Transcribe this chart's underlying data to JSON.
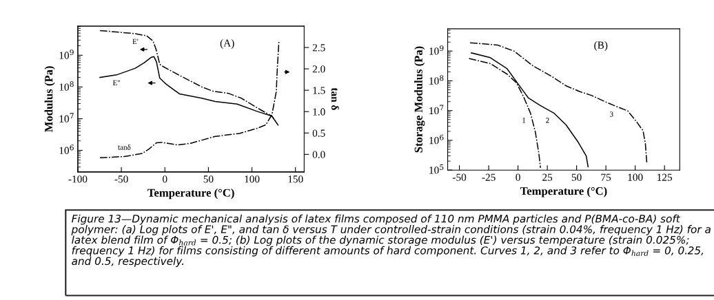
{
  "chart_data": [
    {
      "type": "line",
      "title": "(A)",
      "xlabel": "Temperature (°C)",
      "ylabel": "Modulus (Pa)",
      "y2label": "tan δ",
      "log": "y",
      "grid": false,
      "legend": false,
      "marker": "none",
      "xlim": [
        -100,
        160
      ],
      "xticks": [
        -100,
        -50,
        0,
        50,
        100,
        150
      ],
      "ylim": [
        210000,
        8300000000
      ],
      "yticks": [
        {
          "value": 1000000,
          "label": "10$^{6}$"
        },
        {
          "value": 10000000,
          "label": "10$^{7}$"
        },
        {
          "value": 100000000,
          "label": "10$^{8}$"
        },
        {
          "value": 1000000000,
          "label": "10$^{9}$"
        }
      ],
      "y2lim": [
        -0.41,
        3.0
      ],
      "y2ticks": [
        {
          "value": 0,
          "label": "0.0"
        },
        {
          "value": 0.5,
          "label": "0.5"
        },
        {
          "value": 1,
          "label": "1.0"
        },
        {
          "value": 1.5,
          "label": "1.5"
        },
        {
          "value": 2,
          "label": "2.0"
        },
        {
          "value": 2.5,
          "label": "2.5"
        }
      ],
      "series": [
        {
          "name": "E'",
          "color": "#000000",
          "line_style": "dashed",
          "x": [
            -74.6,
            -33.9,
            -21,
            -13.5,
            -9.7,
            -5.9,
            -2,
            17,
            42.5,
            55,
            73,
            88,
            106,
            123,
            129
          ],
          "values": [
            6000000000.0,
            4800000000.0,
            4100000000.0,
            2800000000.0,
            1400000000.0,
            520000000.0,
            440000000.0,
            230000000.0,
            100000000.0,
            74000000.0,
            63000000.0,
            44000000.0,
            22000000.0,
            12000000.0,
            6900000.0
          ]
        },
        {
          "name": "E\"",
          "color": "#000000",
          "line_style": "solid",
          "x": [
            -74.6,
            -55.5,
            -33.9,
            -23.7,
            -16,
            -12.7,
            -9.7,
            -5.9,
            1.8,
            17,
            42.5,
            57.8,
            83,
            106,
            123,
            130
          ],
          "values": [
            200000000.0,
            240000000.0,
            390000000.0,
            580000000.0,
            850000000.0,
            910000000.0,
            630000000.0,
            190000000.0,
            120000000.0,
            60000000.0,
            44000000.0,
            35000000.0,
            29000000.0,
            17000000.0,
            12000000.0,
            6300000.0
          ]
        },
        {
          "name": "tanδ",
          "color": "#000000",
          "line_style": "dashed",
          "axis": "y2",
          "x": [
            -74.6,
            -46.6,
            -26,
            -18.6,
            -9.7,
            -3.3,
            14.5,
            29.8,
            57.8,
            85.8,
            106,
            116,
            123,
            128,
            129,
            131
          ],
          "values": [
            -0.08,
            -0.05,
            0.02,
            0.12,
            0.27,
            0.28,
            0.22,
            0.26,
            0.42,
            0.49,
            0.61,
            0.69,
            0.93,
            1.47,
            1.95,
            2.65
          ]
        }
      ],
      "annotations": [
        "Figure 13—Dynamic mechanical analysis of latex films composed of 110 nm PMMA particles and P(BMA-co-BA) soft polymer: (a) Log plots of E', E\", and tan δ versus T under controlled-strain conditions (strain 0.04%, frequency 1 Hz) for a latex blend film of Φ$_{hard}$ = 0.5; (b) Log plots of the dynamic storage modulus (E') versus temperature (strain 0.025%; frequency 1 Hz) for films consisting of different amounts of hard component. Curves 1, 2, and 3 refer to Φ$_{hard}$ = 0, 0.25, and 0.5, respectively."
      ]
    },
    {
      "type": "line",
      "title": "(B)",
      "xlabel": "Temperature (°C)",
      "ylabel": "Storage Modulus (Pa)",
      "log": "y",
      "grid": false,
      "legend": false,
      "marker": "none",
      "xlim": [
        -60,
        138
      ],
      "xticks": [
        -50,
        -25,
        0,
        25,
        50,
        75,
        100,
        125
      ],
      "ylim": [
        100000,
        5600000000
      ],
      "yticks": [
        {
          "value": 100000,
          "label": "10$^{5}$"
        },
        {
          "value": 1000000,
          "label": "10$^{6}$"
        },
        {
          "value": 10000000,
          "label": "10$^{7}$"
        },
        {
          "value": 100000000,
          "label": "10$^{8}$"
        },
        {
          "value": 1000000000,
          "label": "10$^{9}$"
        }
      ],
      "series": [
        {
          "name": "1",
          "color": "#000000",
          "line_style": "dashed",
          "x": [
            -41.8,
            -23.6,
            -9.5,
            -1.4,
            4.6,
            10.7,
            14.8,
            17.8,
            19.2
          ],
          "values": [
            560000000.0,
            380000000.0,
            170000000.0,
            87000000.0,
            30000000.0,
            8100000.0,
            1900000.0,
            360000.0,
            120000.0
          ]
        },
        {
          "name": "2",
          "color": "#000000",
          "line_style": "solid",
          "x": [
            -39.8,
            -23.6,
            -9.5,
            0.6,
            8.7,
            18.8,
            30.9,
            41,
            51,
            58.2,
            59.8
          ],
          "values": [
            870000000.0,
            600000000.0,
            260000000.0,
            74000000.0,
            27000000.0,
            15000000.0,
            8100000.0,
            3300000.0,
            910000.0,
            300000.0,
            130000.0
          ]
        },
        {
          "name": "3",
          "color": "#000000",
          "line_style": "dashed",
          "x": [
            -40.8,
            -17.6,
            -3.4,
            12.7,
            28.9,
            41,
            53,
            63,
            75.4,
            85.5,
            93.6,
            101.6,
            106.7,
            108.7,
            110
          ],
          "values": [
            1900000000.0,
            1600000000.0,
            1000000000.0,
            320000000.0,
            140000000.0,
            68000000.0,
            43000000.0,
            32000000.0,
            19000000.0,
            13000000.0,
            9800000.0,
            4000000.0,
            2100000.0,
            760000.0,
            160000.0
          ]
        }
      ]
    }
  ]
}
